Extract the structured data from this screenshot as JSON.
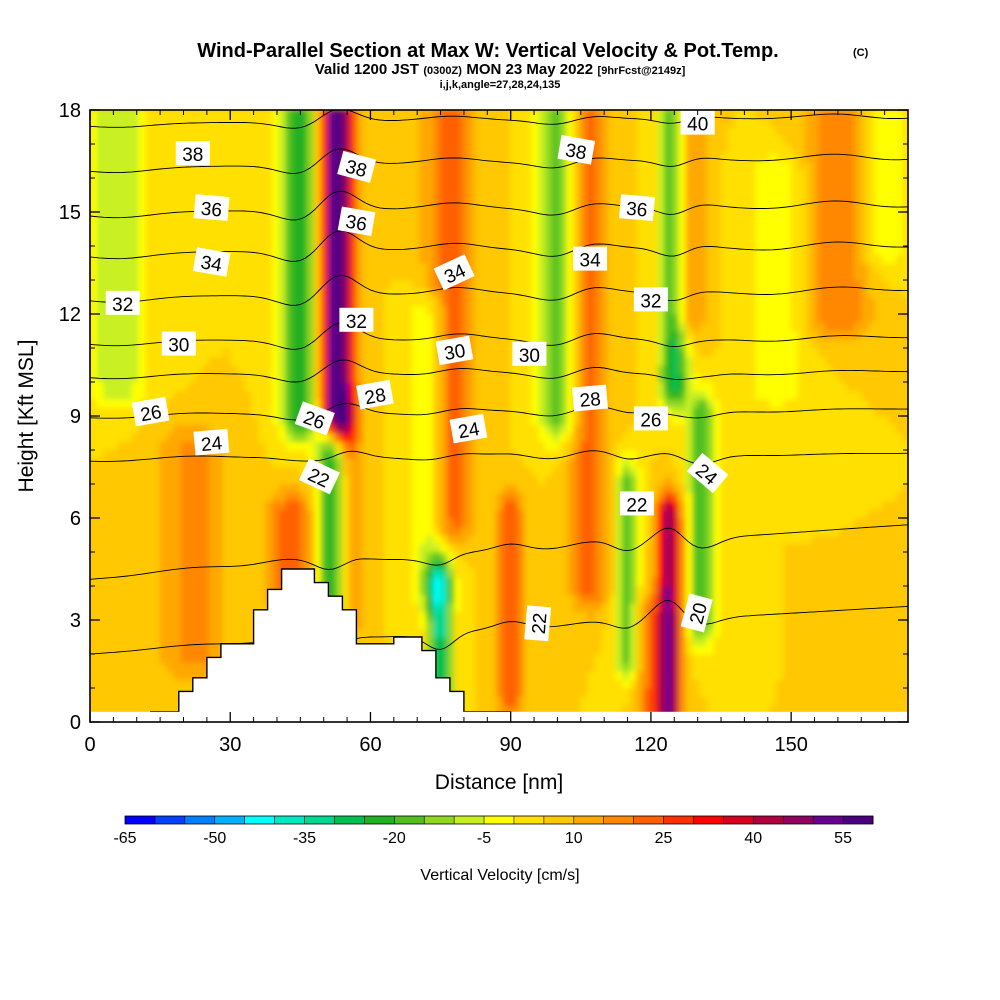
{
  "header": {
    "title": "Wind-Parallel Section at Max W: Vertical Velocity & Pot.Temp.",
    "copyright": "(C)",
    "valid_prefix": "Valid 1200 JST",
    "valid_utc": "(0300Z)",
    "valid_date": "MON 23 May 2022",
    "forecast_info": "[9hrFcst@2149z]",
    "ijk": "i,j,k,angle=27,28,24,135"
  },
  "colorbar": {
    "title": "Vertical Velocity [cm/s]",
    "min": -65,
    "max": 60,
    "step": 5,
    "tick_labels": [
      "-65",
      "-50",
      "-35",
      "-20",
      "-5",
      "10",
      "25",
      "40",
      "55"
    ],
    "colors": [
      "#0000ff",
      "#0040ff",
      "#0080ff",
      "#00b0ff",
      "#00ffff",
      "#00e8c0",
      "#00d890",
      "#00c050",
      "#20b020",
      "#50c020",
      "#90d820",
      "#c8f020",
      "#ffff00",
      "#ffe000",
      "#ffc800",
      "#ffa800",
      "#ff8800",
      "#ff6000",
      "#ff3000",
      "#ff0000",
      "#d80020",
      "#b00040",
      "#900060",
      "#680090",
      "#4b0082"
    ]
  },
  "chart_data": {
    "type": "heatmap",
    "xlabel": "Distance [nm]",
    "ylabel": "Height [Kft MSL]",
    "xlim": [
      0,
      175
    ],
    "ylim": [
      0,
      18
    ],
    "x_ticks": [
      "0",
      "30",
      "60",
      "90",
      "120",
      "150"
    ],
    "x_tick_values": [
      0,
      30,
      60,
      90,
      120,
      150
    ],
    "y_ticks": [
      "0",
      "3",
      "6",
      "9",
      "12",
      "15",
      "18"
    ],
    "y_tick_values": [
      0,
      3,
      6,
      9,
      12,
      15,
      18
    ],
    "background_w": 5,
    "terrain": [
      {
        "x": 13,
        "h": 0.3
      },
      {
        "x": 19,
        "h": 0.9
      },
      {
        "x": 22,
        "h": 1.3
      },
      {
        "x": 25,
        "h": 1.9
      },
      {
        "x": 28,
        "h": 2.3
      },
      {
        "x": 35,
        "h": 3.3
      },
      {
        "x": 38,
        "h": 3.9
      },
      {
        "x": 41,
        "h": 4.5
      },
      {
        "x": 48,
        "h": 4.1
      },
      {
        "x": 51,
        "h": 3.7
      },
      {
        "x": 54,
        "h": 3.3
      },
      {
        "x": 57,
        "h": 2.3
      },
      {
        "x": 61,
        "h": 2.3
      },
      {
        "x": 65,
        "h": 2.5
      },
      {
        "x": 71,
        "h": 2.1
      },
      {
        "x": 74,
        "h": 1.3
      },
      {
        "x": 77,
        "h": 0.9
      },
      {
        "x": 80,
        "h": 0.3
      },
      {
        "x": 87,
        "h": 0.3
      }
    ],
    "updrafts": [
      {
        "x": 53,
        "ybot": 9,
        "ytop": 18,
        "w": 55,
        "sx": 3.5
      },
      {
        "x": 55,
        "ybot": 3,
        "ytop": 9,
        "w": 15,
        "sx": 3
      },
      {
        "x": 124,
        "ybot": 0.3,
        "ytop": 6,
        "w": 45,
        "sx": 2.5
      },
      {
        "x": 77,
        "ybot": 6,
        "ytop": 18,
        "w": 20,
        "sx": 5
      },
      {
        "x": 107,
        "ybot": 4,
        "ytop": 18,
        "w": 18,
        "sx": 4
      },
      {
        "x": 127,
        "ybot": 12,
        "ytop": 18,
        "w": 18,
        "sx": 4
      },
      {
        "x": 160,
        "ybot": 12,
        "ytop": 18,
        "w": 15,
        "sx": 7
      },
      {
        "x": 90,
        "ybot": 1,
        "ytop": 6,
        "w": 20,
        "sx": 3
      },
      {
        "x": 43,
        "ybot": 4,
        "ytop": 6,
        "w": 20,
        "sx": 5
      },
      {
        "x": 22,
        "ybot": 2,
        "ytop": 8,
        "w": 12,
        "sx": 7
      },
      {
        "x": 120,
        "ybot": 0.3,
        "ytop": 3,
        "w": 15,
        "sx": 3
      }
    ],
    "downdrafts": [
      {
        "x": 45,
        "ybot": 9,
        "ytop": 18,
        "w": -30,
        "sx": 4
      },
      {
        "x": 52,
        "ybot": 2,
        "ytop": 8,
        "w": -35,
        "sx": 3
      },
      {
        "x": 75,
        "ybot": 0.5,
        "ytop": 4,
        "w": -38,
        "sx": 2.5
      },
      {
        "x": 73,
        "ybot": 4,
        "ytop": 12,
        "w": -15,
        "sx": 4
      },
      {
        "x": 100,
        "ybot": 9,
        "ytop": 18,
        "w": -22,
        "sx": 4
      },
      {
        "x": 125,
        "ybot": 10,
        "ytop": 18,
        "w": -35,
        "sx": 3
      },
      {
        "x": 131,
        "ybot": 3,
        "ytop": 9,
        "w": -25,
        "sx": 3
      },
      {
        "x": 115,
        "ybot": 2,
        "ytop": 7,
        "w": -22,
        "sx": 2.5
      },
      {
        "x": 6,
        "ybot": 10,
        "ytop": 18,
        "w": -15,
        "sx": 6
      },
      {
        "x": 147,
        "ybot": 10,
        "ytop": 16,
        "w": -10,
        "sx": 6
      },
      {
        "x": 170,
        "ybot": 14,
        "ytop": 18,
        "w": -10,
        "sx": 5
      }
    ],
    "isentropes": [
      {
        "theta": 20,
        "y_left": 2.0,
        "y_right": 3.4
      },
      {
        "theta": 22,
        "y_left": 4.2,
        "y_right": 5.8
      },
      {
        "theta": 24,
        "y_left": 7.7,
        "y_right": 7.9
      },
      {
        "theta": 26,
        "y_left": 9.0,
        "y_right": 9.2
      },
      {
        "theta": 28,
        "y_left": 10.2,
        "y_right": 10.3
      },
      {
        "theta": 30,
        "y_left": 11.2,
        "y_right": 11.3
      },
      {
        "theta": 32,
        "y_left": 12.5,
        "y_right": 12.7
      },
      {
        "theta": 34,
        "y_left": 13.8,
        "y_right": 14.0
      },
      {
        "theta": 36,
        "y_left": 15.0,
        "y_right": 15.2
      },
      {
        "theta": 38,
        "y_left": 16.3,
        "y_right": 16.6
      },
      {
        "theta": 40,
        "y_left": 17.6,
        "y_right": 17.8
      }
    ],
    "contour_labels": [
      {
        "text": "38",
        "x": 22,
        "y": 16.7,
        "rot": 0
      },
      {
        "text": "38",
        "x": 57,
        "y": 16.3,
        "rot": 15
      },
      {
        "text": "38",
        "x": 104,
        "y": 16.8,
        "rot": 10
      },
      {
        "text": "40",
        "x": 130,
        "y": 17.6,
        "rot": 0
      },
      {
        "text": "36",
        "x": 26,
        "y": 15.1,
        "rot": 5
      },
      {
        "text": "36",
        "x": 57,
        "y": 14.7,
        "rot": 10
      },
      {
        "text": "36",
        "x": 117,
        "y": 15.1,
        "rot": 5
      },
      {
        "text": "34",
        "x": 26,
        "y": 13.5,
        "rot": 10
      },
      {
        "text": "34",
        "x": 78,
        "y": 13.2,
        "rot": -25
      },
      {
        "text": "34",
        "x": 107,
        "y": 13.6,
        "rot": 0
      },
      {
        "text": "32",
        "x": 7,
        "y": 12.3,
        "rot": 0
      },
      {
        "text": "32",
        "x": 57,
        "y": 11.8,
        "rot": 0
      },
      {
        "text": "32",
        "x": 120,
        "y": 12.4,
        "rot": 0
      },
      {
        "text": "30",
        "x": 19,
        "y": 11.1,
        "rot": 0
      },
      {
        "text": "30",
        "x": 78,
        "y": 10.9,
        "rot": -10
      },
      {
        "text": "30",
        "x": 94,
        "y": 10.8,
        "rot": 0
      },
      {
        "text": "28",
        "x": 61,
        "y": 9.6,
        "rot": -10
      },
      {
        "text": "28",
        "x": 107,
        "y": 9.5,
        "rot": -5
      },
      {
        "text": "26",
        "x": 13,
        "y": 9.1,
        "rot": -10
      },
      {
        "text": "26",
        "x": 48,
        "y": 8.9,
        "rot": 20
      },
      {
        "text": "26",
        "x": 120,
        "y": 8.9,
        "rot": 0
      },
      {
        "text": "24",
        "x": 26,
        "y": 8.2,
        "rot": -5
      },
      {
        "text": "24",
        "x": 81,
        "y": 8.6,
        "rot": -10
      },
      {
        "text": "24",
        "x": 132,
        "y": 7.3,
        "rot": 40
      },
      {
        "text": "22",
        "x": 49,
        "y": 7.2,
        "rot": 25
      },
      {
        "text": "22",
        "x": 117,
        "y": 6.4,
        "rot": 0
      },
      {
        "text": "22",
        "x": 96,
        "y": 2.9,
        "rot": -85
      },
      {
        "text": "20",
        "x": 130,
        "y": 3.2,
        "rot": -75
      }
    ]
  }
}
